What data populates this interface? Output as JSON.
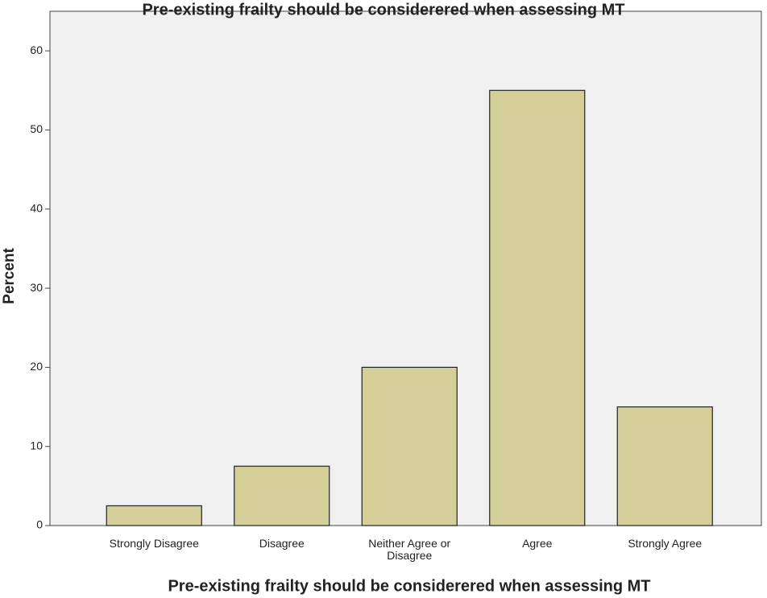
{
  "chart_data": {
    "type": "bar",
    "title": "Pre-existing frailty should be considerered when assessing MT",
    "x_label": "Pre-existing frailty should be considerered when assessing MT",
    "y_label": "Percent",
    "categories": [
      "Strongly Disagree",
      "Disagree",
      "Neither Agree or Disagree",
      "Agree",
      "Strongly Agree"
    ],
    "values": [
      2.5,
      7.5,
      20,
      55,
      15
    ],
    "color": "#d4cf98",
    "ylim": [
      0,
      65
    ],
    "yticks": [
      0,
      10,
      20,
      30,
      40,
      50,
      60
    ],
    "grid": false
  }
}
